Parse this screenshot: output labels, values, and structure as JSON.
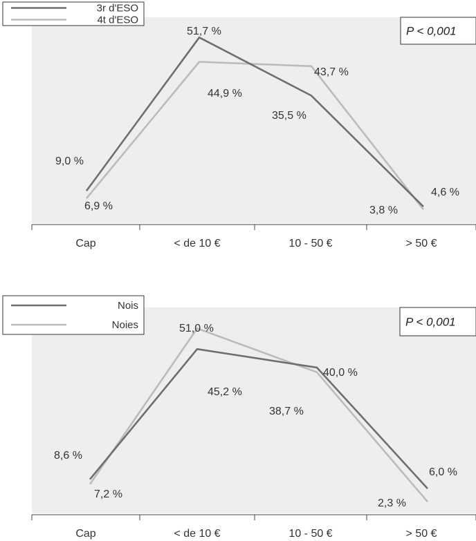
{
  "colors": {
    "plot_bg": "#eeeeee",
    "series_dark": "#6e6e6e",
    "series_light": "#bbbbbb",
    "axis": "#444444"
  },
  "chart_data": [
    {
      "type": "line",
      "categories": [
        "Cap",
        "< de 10 €",
        "10 - 50 €",
        "> 50 €"
      ],
      "series": [
        {
          "name": "3r d'ESO",
          "values": [
            9.0,
            51.7,
            35.5,
            4.6
          ],
          "labels": [
            "9,0 %",
            "51,7 %",
            "35,5 %",
            "4,6 %"
          ],
          "color": "#6e6e6e"
        },
        {
          "name": "4t d'ESO",
          "values": [
            6.9,
            44.9,
            43.7,
            3.8
          ],
          "labels": [
            "6,9 %",
            "44,9 %",
            "43,7 %",
            "3,8 %"
          ],
          "color": "#bbbbbb"
        }
      ],
      "annotation": "P < 0,001",
      "legend": "top-left",
      "ylim": [
        0,
        60
      ],
      "grid": false
    },
    {
      "type": "line",
      "categories": [
        "Cap",
        "< de 10 €",
        "10 - 50 €",
        "> 50 €"
      ],
      "series": [
        {
          "name": "Nois",
          "values": [
            8.6,
            45.2,
            40.0,
            6.0
          ],
          "labels": [
            "8,6 %",
            "45,2 %",
            "40,0 %",
            "6,0 %"
          ],
          "color": "#6e6e6e"
        },
        {
          "name": "Noies",
          "values": [
            7.2,
            51.0,
            38.7,
            2.3
          ],
          "labels": [
            "7,2 %",
            "51,0 %",
            "38,7 %",
            "2,3 %"
          ],
          "color": "#bbbbbb"
        }
      ],
      "annotation": "P < 0,001",
      "legend": "top-left",
      "ylim": [
        0,
        60
      ],
      "grid": false
    }
  ]
}
